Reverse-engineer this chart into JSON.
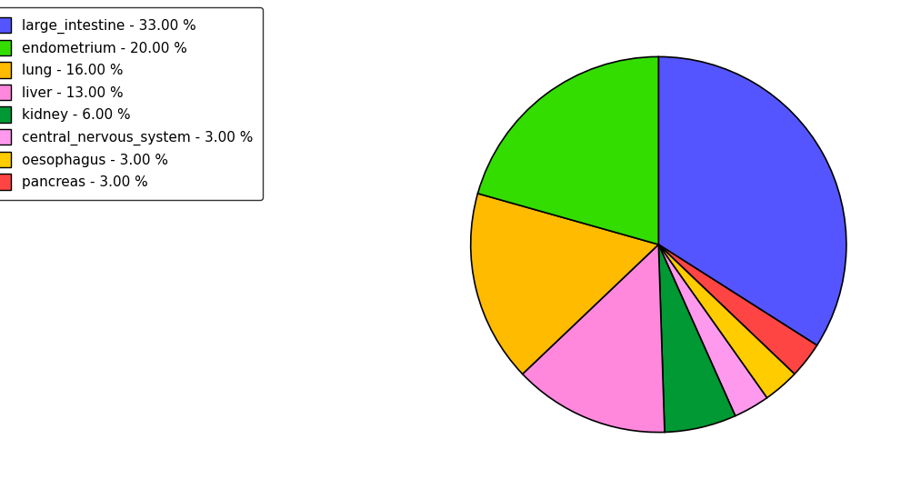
{
  "labels": [
    "large_intestine",
    "endometrium",
    "lung",
    "liver",
    "kidney",
    "central_nervous_system",
    "oesophagus",
    "pancreas"
  ],
  "values": [
    33.0,
    20.0,
    16.0,
    13.0,
    6.0,
    3.0,
    3.0,
    3.0
  ],
  "colors": [
    "#5555ff",
    "#33dd00",
    "#ffbb00",
    "#ff88dd",
    "#009933",
    "#ff99ee",
    "#ffcc00",
    "#ff4444"
  ],
  "legend_labels": [
    "large_intestine - 33.00 %",
    "endometrium - 20.00 %",
    "lung - 16.00 %",
    "liver - 13.00 %",
    "kidney - 6.00 %",
    "central_nervous_system - 3.00 %",
    "oesophagus - 3.00 %",
    "pancreas - 3.00 %"
  ],
  "background_color": "#ffffff",
  "figsize": [
    10.13,
    5.38
  ],
  "dpi": 100,
  "pie_plot_order": [
    0,
    7,
    6,
    5,
    4,
    3,
    2,
    1
  ],
  "startangle": 90,
  "counterclock": false
}
